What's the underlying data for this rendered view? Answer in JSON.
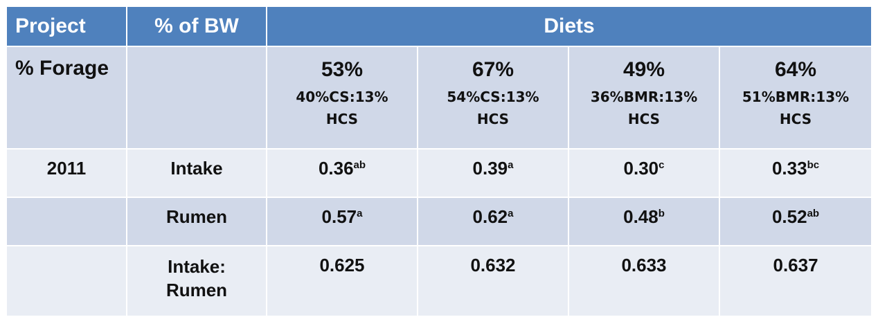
{
  "header": {
    "project": "Project",
    "bw": "% of BW",
    "diets": "Diets"
  },
  "forage_row": {
    "label": "% Forage",
    "diets": [
      {
        "pct": "53%",
        "line1": "40%CS:13%",
        "line2": "HCS"
      },
      {
        "pct": "67%",
        "line1": "54%CS:13%",
        "line2": "HCS"
      },
      {
        "pct": "49%",
        "line1": "36%BMR:13%",
        "line2": "HCS"
      },
      {
        "pct": "64%",
        "line1": "51%BMR:13%",
        "line2": "HCS"
      }
    ]
  },
  "rows": {
    "intake": {
      "year": "2011",
      "label": "Intake",
      "values": [
        {
          "v": "0.36",
          "sup": "ab"
        },
        {
          "v": "0.39",
          "sup": "a"
        },
        {
          "v": "0.30",
          "sup": "c"
        },
        {
          "v": "0.33",
          "sup": "bc"
        }
      ]
    },
    "rumen": {
      "label": "Rumen",
      "values": [
        {
          "v": "0.57",
          "sup": "a"
        },
        {
          "v": "0.62",
          "sup": "a"
        },
        {
          "v": "0.48",
          "sup": "b"
        },
        {
          "v": "0.52",
          "sup": "ab"
        }
      ]
    },
    "ratio": {
      "label_line1": "Intake:",
      "label_line2": "Rumen",
      "values": [
        "0.625",
        "0.632",
        "0.633",
        "0.637"
      ]
    }
  },
  "colors": {
    "header_bg": "#4f81bd",
    "band_bg": "#d0d8e8",
    "plain_bg": "#e9edf4",
    "value_red": "#c0262d"
  }
}
